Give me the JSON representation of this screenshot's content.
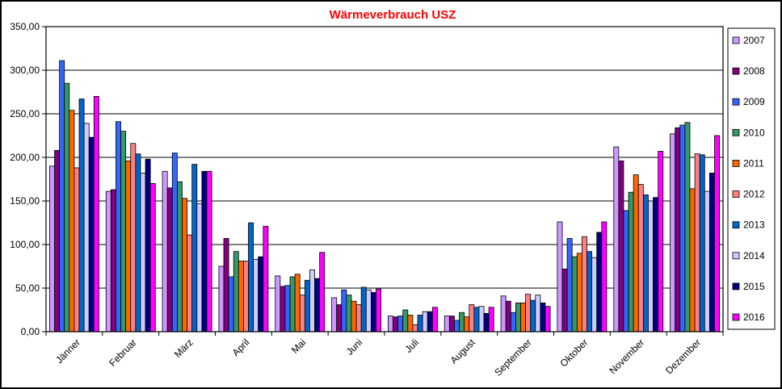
{
  "chart_data": {
    "type": "bar",
    "title": "Wärmeverbrauch USZ",
    "xlabel": "",
    "ylabel": "",
    "ylim": [
      0,
      350
    ],
    "yticks": [
      "0,00",
      "50,00",
      "100,00",
      "150,00",
      "200,00",
      "250,00",
      "300,00",
      "350,00"
    ],
    "grid": true,
    "legend_position": "right",
    "categories": [
      "Jänner",
      "Februar",
      "März",
      "April",
      "Mai",
      "Juni",
      "Juli",
      "August",
      "September",
      "Oktober",
      "November",
      "Dezember"
    ],
    "series": [
      {
        "name": "2007",
        "color": "#CC99FF",
        "values": [
          190,
          161,
          184,
          75,
          64,
          39,
          18,
          18,
          41,
          126,
          212,
          227
        ]
      },
      {
        "name": "2008",
        "color": "#800080",
        "values": [
          208,
          163,
          165,
          107,
          52,
          31,
          17,
          18,
          35,
          72,
          196,
          234
        ]
      },
      {
        "name": "2009",
        "color": "#3366FF",
        "values": [
          311,
          241,
          205,
          63,
          53,
          48,
          18,
          13,
          22,
          107,
          139,
          237
        ]
      },
      {
        "name": "2010",
        "color": "#339966",
        "values": [
          285,
          230,
          172,
          92,
          63,
          42,
          25,
          22,
          33,
          86,
          160,
          240
        ]
      },
      {
        "name": "2011",
        "color": "#FF6600",
        "values": [
          254,
          196,
          153,
          81,
          66,
          35,
          19,
          17,
          33,
          90,
          180,
          164
        ]
      },
      {
        "name": "2012",
        "color": "#FF8080",
        "values": [
          188,
          216,
          111,
          81,
          42,
          31,
          8,
          31,
          43,
          109,
          169,
          204
        ]
      },
      {
        "name": "2013",
        "color": "#0066CC",
        "values": [
          267,
          204,
          192,
          125,
          59,
          51,
          19,
          28,
          36,
          92,
          157,
          203
        ]
      },
      {
        "name": "2014",
        "color": "#CCCCFF",
        "values": [
          239,
          182,
          147,
          83,
          71,
          48,
          23,
          29,
          42,
          85,
          150,
          161
        ]
      },
      {
        "name": "2015",
        "color": "#000080",
        "values": [
          223,
          198,
          184,
          86,
          61,
          45,
          23,
          21,
          33,
          114,
          154,
          182
        ]
      },
      {
        "name": "2016",
        "color": "#FF00FF",
        "values": [
          270,
          170,
          184,
          121,
          91,
          49,
          28,
          28,
          29,
          126,
          207,
          225
        ]
      }
    ]
  }
}
